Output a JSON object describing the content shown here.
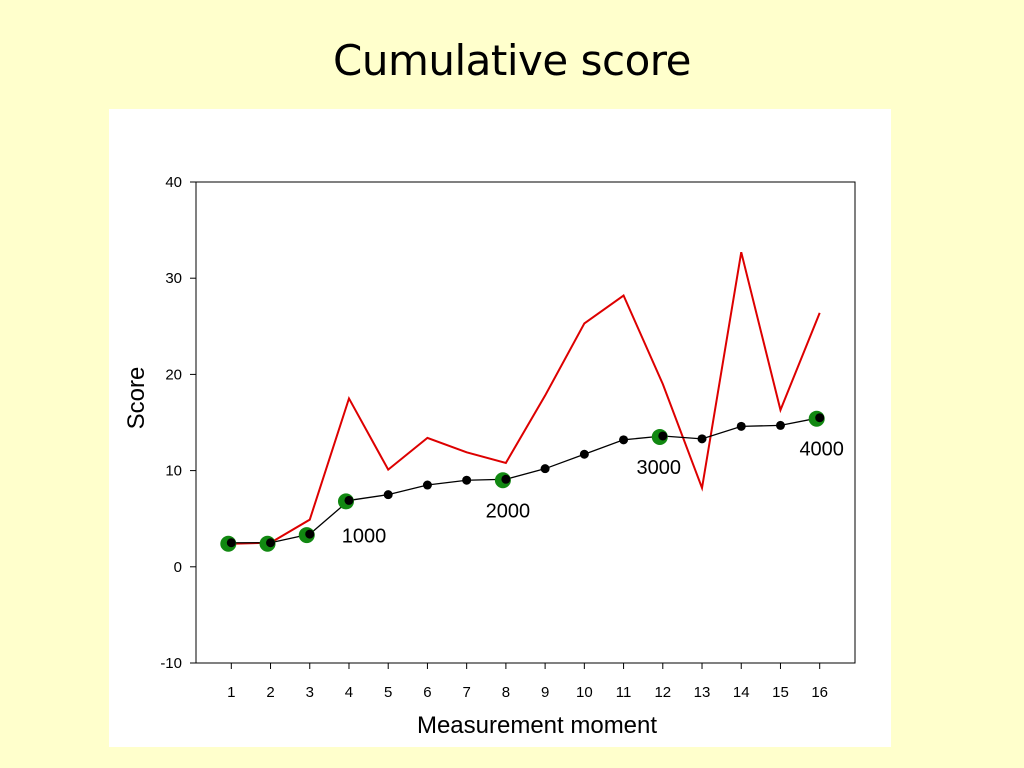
{
  "slide": {
    "title": "Cumulative score"
  },
  "chart_data": {
    "type": "line",
    "title": "",
    "xlabel": "Measurement moment",
    "ylabel": "Score",
    "x": [
      1,
      2,
      3,
      4,
      5,
      6,
      7,
      8,
      9,
      10,
      11,
      12,
      13,
      14,
      15,
      16
    ],
    "xlim": [
      0.1,
      16.9
    ],
    "ylim": [
      -10,
      40
    ],
    "yticks": [
      -10,
      0,
      10,
      20,
      30,
      40
    ],
    "grid": false,
    "series": [
      {
        "color": "#dd0000",
        "marker": "none",
        "values": [
          2.4,
          2.5,
          4.9,
          17.5,
          10.1,
          13.4,
          11.9,
          10.8,
          17.8,
          25.3,
          28.2,
          19.0,
          8.2,
          32.7,
          16.3,
          26.4
        ]
      },
      {
        "color": "#000000",
        "marker": "circle",
        "values": [
          2.5,
          2.5,
          3.4,
          6.9,
          7.5,
          8.5,
          9.0,
          9.1,
          10.2,
          11.7,
          13.2,
          13.6,
          13.3,
          14.6,
          14.7,
          15.5
        ]
      }
    ],
    "highlights": {
      "color": "#118811",
      "x": [
        1,
        2,
        3,
        4,
        8,
        12,
        16
      ]
    },
    "annotations": [
      {
        "x": 4,
        "y": 6.9,
        "text": "1000"
      },
      {
        "x": 8,
        "y": 9.1,
        "text": "2000"
      },
      {
        "x": 12,
        "y": 13.6,
        "text": "3000"
      },
      {
        "x": 16,
        "y": 15.5,
        "text": "4000"
      }
    ]
  }
}
